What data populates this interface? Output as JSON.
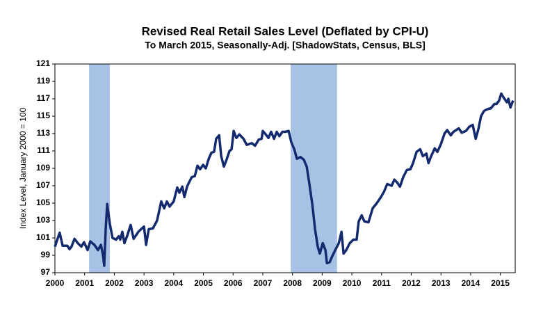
{
  "chart_data": {
    "type": "line",
    "title": "Revised Real Retail Sales Level (Deflated by CPI-U)",
    "subtitle": "To March 2015, Seasonally-Adj. [ShadowStats, Census, BLS]",
    "y_label": "Index Level, January 2000 = 100",
    "xlim": [
      2000,
      2015.5
    ],
    "xticks": [
      2000,
      2001,
      2002,
      2003,
      2004,
      2005,
      2006,
      2007,
      2008,
      2009,
      2010,
      2011,
      2012,
      2013,
      2014,
      2015
    ],
    "ylim": [
      97,
      121
    ],
    "yticks": [
      97,
      99,
      101,
      103,
      105,
      107,
      109,
      111,
      113,
      115,
      117,
      119,
      121
    ],
    "grid": false,
    "recessions": [
      [
        2001.15,
        2001.85
      ],
      [
        2007.94,
        2009.5
      ]
    ],
    "recession_color": "#a8c2e6",
    "series": [
      {
        "color": "#142a6e",
        "x": [
          2000.0,
          2000.16,
          2000.26,
          2000.42,
          2000.49,
          2000.56,
          2000.66,
          2000.77,
          2000.89,
          2000.98,
          2001.1,
          2001.19,
          2001.33,
          2001.45,
          2001.55,
          2001.62,
          2001.66,
          2001.71,
          2001.76,
          2001.85,
          2001.94,
          2002.06,
          2002.15,
          2002.2,
          2002.27,
          2002.34,
          2002.44,
          2002.55,
          2002.65,
          2002.81,
          2002.9,
          2003.0,
          2003.07,
          2003.16,
          2003.3,
          2003.44,
          2003.58,
          2003.68,
          2003.77,
          2003.86,
          2004.0,
          2004.12,
          2004.19,
          2004.29,
          2004.36,
          2004.45,
          2004.52,
          2004.61,
          2004.71,
          2004.8,
          2004.89,
          2004.99,
          2005.08,
          2005.18,
          2005.27,
          2005.36,
          2005.43,
          2005.53,
          2005.6,
          2005.69,
          2005.78,
          2005.88,
          2005.95,
          2006.02,
          2006.11,
          2006.21,
          2006.35,
          2006.46,
          2006.63,
          2006.74,
          2006.86,
          2006.96,
          2007.0,
          2007.1,
          2007.19,
          2007.28,
          2007.38,
          2007.47,
          2007.56,
          2007.66,
          2007.75,
          2007.87,
          2007.96,
          2008.06,
          2008.15,
          2008.27,
          2008.38,
          2008.48,
          2008.57,
          2008.67,
          2008.76,
          2008.85,
          2008.92,
          2009.02,
          2009.11,
          2009.16,
          2009.25,
          2009.34,
          2009.44,
          2009.56,
          2009.65,
          2009.72,
          2009.81,
          2009.93,
          2010.05,
          2010.16,
          2010.23,
          2010.33,
          2010.42,
          2010.56,
          2010.7,
          2010.84,
          2010.96,
          2011.08,
          2011.19,
          2011.34,
          2011.43,
          2011.52,
          2011.62,
          2011.73,
          2011.85,
          2011.97,
          2012.06,
          2012.18,
          2012.3,
          2012.39,
          2012.51,
          2012.58,
          2012.67,
          2012.79,
          2012.88,
          2013.0,
          2013.12,
          2013.21,
          2013.33,
          2013.42,
          2013.51,
          2013.6,
          2013.7,
          2013.84,
          2013.96,
          2014.07,
          2014.17,
          2014.26,
          2014.35,
          2014.45,
          2014.56,
          2014.68,
          2014.8,
          2014.87,
          2014.96,
          2015.03,
          2015.1,
          2015.22,
          2015.27,
          2015.34,
          2015.43
        ],
        "values": [
          100.0,
          101.6,
          100.1,
          100.1,
          99.7,
          100.0,
          100.9,
          100.4,
          100.0,
          100.5,
          99.6,
          100.6,
          100.2,
          99.6,
          100.2,
          99.0,
          97.8,
          102.0,
          104.9,
          102.6,
          101.0,
          100.8,
          101.2,
          100.8,
          101.7,
          100.4,
          101.3,
          102.5,
          100.9,
          101.7,
          102.0,
          102.3,
          100.2,
          102.0,
          102.1,
          103.0,
          105.2,
          104.4,
          105.2,
          104.6,
          105.2,
          106.8,
          106.2,
          106.9,
          105.7,
          106.9,
          107.4,
          108.0,
          108.1,
          109.3,
          108.9,
          109.4,
          109.0,
          110.1,
          110.8,
          110.9,
          112.4,
          112.8,
          110.4,
          109.2,
          110.0,
          111.0,
          111.2,
          113.3,
          112.5,
          112.9,
          112.4,
          111.7,
          111.9,
          111.6,
          112.3,
          112.4,
          113.3,
          112.9,
          112.5,
          113.2,
          112.4,
          113.2,
          112.7,
          113.2,
          113.2,
          113.3,
          112.0,
          111.2,
          110.1,
          110.3,
          110.0,
          109.2,
          107.2,
          104.8,
          102.0,
          100.0,
          99.2,
          100.4,
          99.6,
          98.1,
          98.2,
          98.9,
          99.6,
          100.4,
          101.7,
          99.2,
          99.6,
          100.4,
          100.8,
          100.8,
          102.9,
          103.6,
          102.9,
          102.8,
          104.4,
          105.0,
          105.6,
          106.3,
          107.2,
          107.0,
          107.7,
          107.4,
          106.9,
          108.0,
          108.8,
          108.9,
          109.6,
          110.9,
          111.2,
          110.4,
          110.7,
          109.6,
          110.4,
          111.3,
          110.9,
          111.8,
          113.0,
          113.4,
          112.8,
          113.2,
          113.4,
          113.6,
          113.1,
          113.3,
          113.8,
          114.0,
          112.4,
          113.5,
          115.0,
          115.6,
          115.8,
          115.9,
          116.4,
          116.4,
          116.8,
          117.6,
          117.2,
          116.6,
          117.0,
          116.0,
          116.8
        ]
      }
    ]
  }
}
